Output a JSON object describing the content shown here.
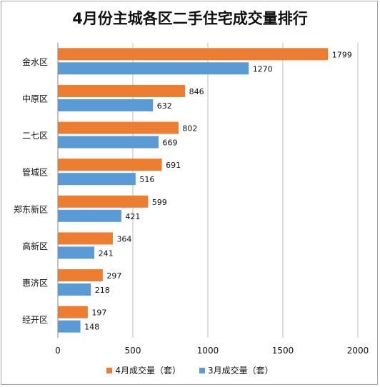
{
  "chart_data": {
    "type": "bar",
    "orientation": "horizontal",
    "title": "4月份主城各区二手住宅成交量排行",
    "categories": [
      "金水区",
      "中原区",
      "二七区",
      "管城区",
      "郑东新区",
      "高新区",
      "惠济区",
      "经开区"
    ],
    "series": [
      {
        "name": "4月成交量（套）",
        "color": "#ed7d31",
        "values": [
          1799,
          846,
          802,
          691,
          599,
          364,
          297,
          197
        ]
      },
      {
        "name": "3月成交量（套）",
        "color": "#5b9bd5",
        "values": [
          1270,
          632,
          669,
          516,
          421,
          241,
          218,
          148
        ]
      }
    ],
    "xlim": [
      0,
      2000
    ],
    "xticks": [
      0,
      500,
      1000,
      1500,
      2000
    ],
    "grid": true,
    "legend_position": "bottom"
  }
}
